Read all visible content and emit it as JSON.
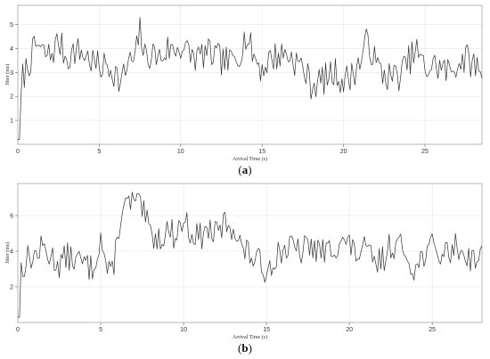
{
  "chart_data": [
    {
      "type": "line",
      "panel_label": "a",
      "xlabel": "Arrival Time (s)",
      "ylabel": "Jitter (ms)",
      "xlim": [
        0,
        28.5
      ],
      "ylim": [
        0,
        5.8
      ],
      "xticks": [
        5,
        10,
        15,
        20,
        25
      ],
      "yticks": [
        1,
        2,
        3,
        4,
        5
      ],
      "grid": true,
      "x_step": 0.1,
      "series": [
        {
          "color": "#333333",
          "keyframes_x": [
            0.0,
            0.3,
            0.8,
            1.2,
            1.5,
            2.0,
            2.5,
            3.0,
            3.5,
            4.0,
            4.5,
            5.0,
            5.5,
            6.0,
            6.3,
            6.8,
            7.2,
            7.5,
            7.8,
            8.2,
            8.8,
            9.2,
            9.5,
            10.0,
            10.5,
            11.0,
            11.5,
            12.0,
            12.5,
            13.0,
            13.5,
            14.0,
            14.5,
            15.0,
            15.5,
            16.0,
            16.5,
            17.0,
            17.5,
            18.0,
            18.5,
            19.0,
            19.5,
            20.0,
            20.5,
            21.0,
            21.5,
            22.0,
            22.5,
            23.0,
            23.5,
            24.0,
            24.5,
            25.0,
            25.5,
            26.0,
            26.5,
            27.0,
            27.5,
            28.0,
            28.5
          ],
          "keyframes_y": [
            0.2,
            2.8,
            3.6,
            4.2,
            3.8,
            3.7,
            4.3,
            3.6,
            3.9,
            3.8,
            3.5,
            3.2,
            3.3,
            3.0,
            2.5,
            3.4,
            3.5,
            4.8,
            3.6,
            3.8,
            3.6,
            4.0,
            3.9,
            4.1,
            3.8,
            3.6,
            3.8,
            3.7,
            3.5,
            3.4,
            3.7,
            4.5,
            3.7,
            3.1,
            3.6,
            3.7,
            3.8,
            3.5,
            3.2,
            2.5,
            2.6,
            2.8,
            3.0,
            2.6,
            2.9,
            3.4,
            4.4,
            3.3,
            2.9,
            2.8,
            2.9,
            3.5,
            3.9,
            3.1,
            3.3,
            3.2,
            3.0,
            3.4,
            3.6,
            3.3,
            3.2
          ],
          "noise_amplitude": 0.65,
          "seed": 7
        }
      ]
    },
    {
      "type": "line",
      "panel_label": "b",
      "xlabel": "Arrival Time (s)",
      "ylabel": "Jitter (ms)",
      "xlim": [
        0,
        28
      ],
      "ylim": [
        0,
        7.8
      ],
      "xticks": [
        5,
        10,
        15,
        20,
        25
      ],
      "yticks": [
        2,
        4,
        6
      ],
      "grid": true,
      "x_step": 0.1,
      "series": [
        {
          "color": "#333333",
          "keyframes_x": [
            0.0,
            0.2,
            0.6,
            1.0,
            1.5,
            2.0,
            2.5,
            3.0,
            3.5,
            4.0,
            4.5,
            5.0,
            5.3,
            5.6,
            5.9,
            6.2,
            6.6,
            7.0,
            7.5,
            8.0,
            8.5,
            9.0,
            9.5,
            10.0,
            10.5,
            11.0,
            11.5,
            12.0,
            12.5,
            13.0,
            13.5,
            14.0,
            14.5,
            15.0,
            15.5,
            16.0,
            16.5,
            17.0,
            17.5,
            18.0,
            18.5,
            19.0,
            19.5,
            20.0,
            20.5,
            21.0,
            21.5,
            22.0,
            22.5,
            23.0,
            23.5,
            24.0,
            24.5,
            25.0,
            25.5,
            26.0,
            26.5,
            27.0,
            27.5,
            28.0
          ],
          "keyframes_y": [
            0.3,
            3.0,
            3.6,
            3.7,
            4.2,
            3.7,
            3.3,
            3.7,
            3.5,
            3.3,
            3.0,
            4.8,
            3.3,
            2.4,
            4.0,
            6.0,
            6.6,
            6.8,
            6.3,
            5.0,
            4.7,
            5.2,
            4.9,
            5.8,
            5.0,
            4.8,
            5.2,
            4.9,
            5.6,
            5.4,
            4.2,
            3.8,
            3.4,
            2.9,
            3.7,
            4.1,
            4.2,
            3.9,
            4.3,
            4.1,
            3.9,
            4.2,
            4.6,
            4.3,
            3.8,
            4.1,
            3.3,
            3.5,
            4.4,
            4.3,
            3.8,
            2.9,
            3.9,
            4.2,
            3.8,
            4.0,
            4.3,
            3.8,
            3.6,
            3.7
          ],
          "noise_amplitude": 0.8,
          "seed": 13
        }
      ]
    }
  ],
  "captions": {
    "a": "a",
    "b": "b"
  }
}
